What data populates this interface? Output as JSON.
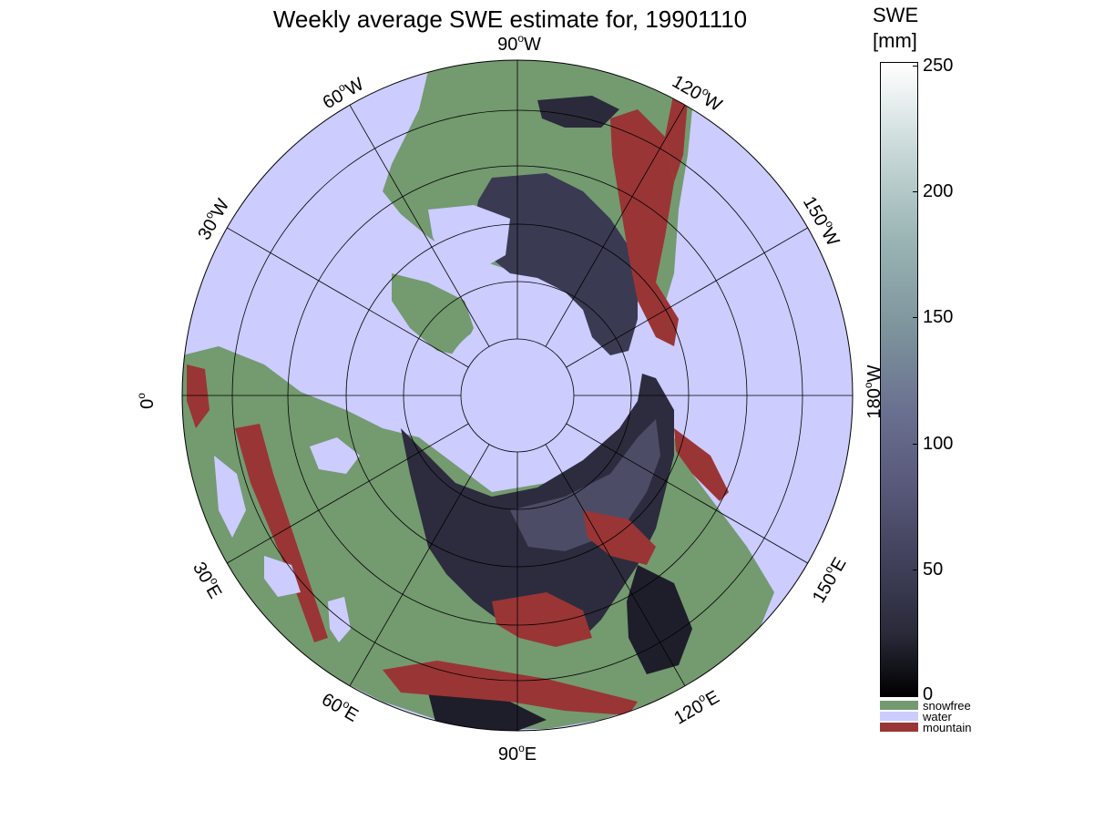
{
  "title": "Weekly average SWE estimate for, 19901110",
  "lon_labels": {
    "deg0": {
      "num": "0",
      "dir": ""
    },
    "deg30e": {
      "num": "30",
      "dir": "E"
    },
    "deg60e": {
      "num": "60",
      "dir": "E"
    },
    "deg90e": {
      "num": "90",
      "dir": "E"
    },
    "deg120e": {
      "num": "120",
      "dir": "E"
    },
    "deg150e": {
      "num": "150",
      "dir": "E"
    },
    "deg180w": {
      "num": "180",
      "dir": "W"
    },
    "deg150w": {
      "num": "150",
      "dir": "W"
    },
    "deg120w": {
      "num": "120",
      "dir": "W"
    },
    "deg90w": {
      "num": "90",
      "dir": "W"
    },
    "deg60w": {
      "num": "60",
      "dir": "W"
    },
    "deg30w": {
      "num": "30",
      "dir": "W"
    }
  },
  "degree_symbol": "o",
  "colorbar": {
    "unit_line1": "SWE",
    "unit_line2": "[mm]",
    "range": [
      0,
      250
    ],
    "ticks": [
      "250",
      "200",
      "150",
      "100",
      "50",
      "0"
    ]
  },
  "legend": [
    {
      "label": "snowfree",
      "color": "#749a70"
    },
    {
      "label": "water",
      "color": "#ccccff"
    },
    {
      "label": "mountain",
      "color": "#9a3535"
    }
  ],
  "colors": {
    "water": "#ccccff",
    "snowfree": "#749a70",
    "mountain": "#9a3535",
    "snow_low": "#1e1e2a",
    "snow_mid": "#4a4a66"
  }
}
